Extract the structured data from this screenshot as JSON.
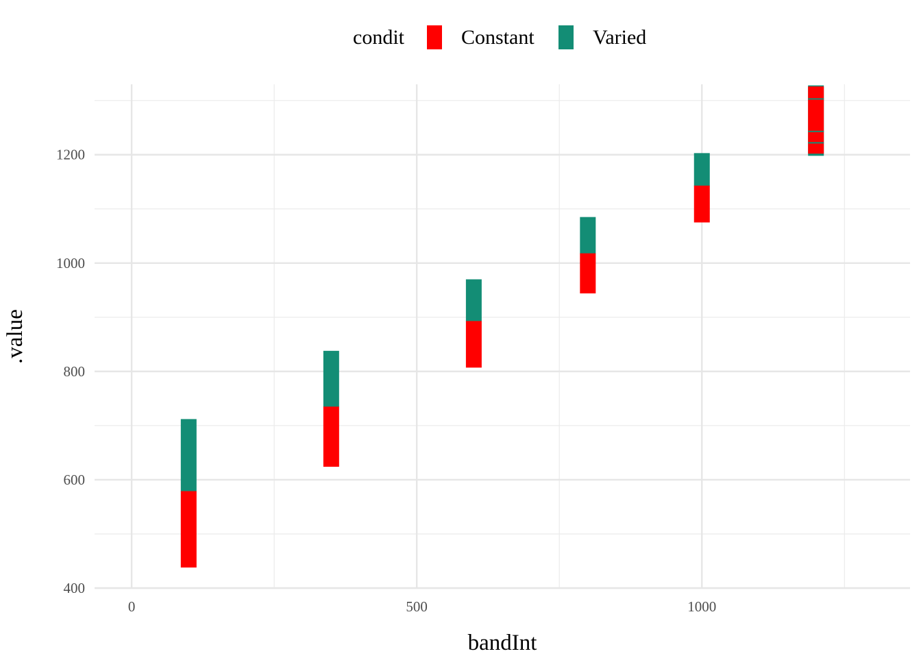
{
  "chart_data": {
    "type": "bar",
    "subtype": "floating-range",
    "xlabel": "bandInt",
    "ylabel": ".value",
    "xlim": [
      -65,
      1365
    ],
    "ylim": [
      400,
      1330
    ],
    "xticks": [
      0,
      500,
      1000
    ],
    "xtick_labels": [
      "0",
      "500",
      "1000"
    ],
    "yticks": [
      400,
      600,
      800,
      1000,
      1200
    ],
    "ytick_labels": [
      "400",
      "600",
      "800",
      "1000",
      "1200"
    ],
    "grid": true,
    "legend": {
      "title": "condit",
      "position": "top",
      "entries": [
        {
          "label": "Constant",
          "color": "#FF0000"
        },
        {
          "label": "Varied",
          "color": "#138D75"
        }
      ]
    },
    "series": [
      {
        "name": "Varied",
        "color": "#138D75",
        "ranges": [
          {
            "x": 100,
            "low": 578,
            "high": 712
          },
          {
            "x": 350,
            "low": 734,
            "high": 838
          },
          {
            "x": 600,
            "low": 892,
            "high": 970
          },
          {
            "x": 800,
            "low": 1017,
            "high": 1085
          },
          {
            "x": 1000,
            "low": 1142,
            "high": 1203
          },
          {
            "x": 1200,
            "low": 1198,
            "high": 1328
          }
        ]
      },
      {
        "name": "Constant",
        "color": "#FF0000",
        "ranges": [
          {
            "x": 100,
            "low": 438,
            "high": 579
          },
          {
            "x": 350,
            "low": 624,
            "high": 735
          },
          {
            "x": 600,
            "low": 807,
            "high": 893
          },
          {
            "x": 800,
            "low": 944,
            "high": 1018
          },
          {
            "x": 1000,
            "low": 1075,
            "high": 1143
          },
          {
            "x": 1200,
            "low": 1202,
            "high": 1326
          }
        ]
      }
    ],
    "inner_lines": [
      {
        "x": 1200,
        "values": [
          1222,
          1243,
          1303
        ],
        "color": "#138D75"
      }
    ]
  }
}
